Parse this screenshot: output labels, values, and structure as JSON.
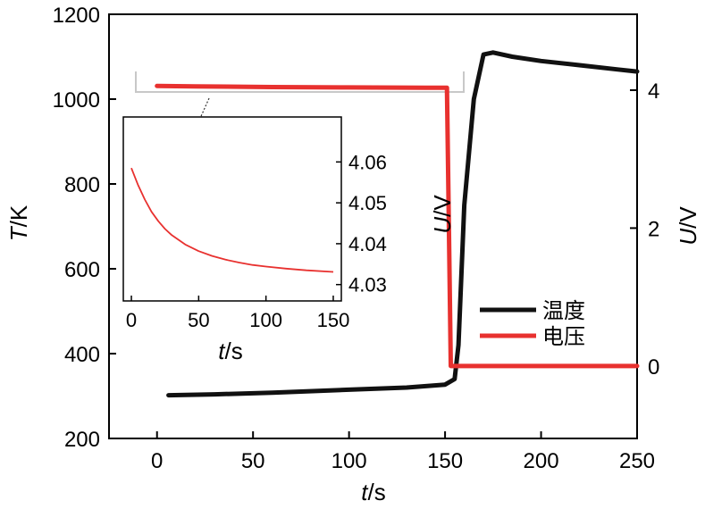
{
  "chart_data": [
    {
      "type": "line",
      "xlabel": {
        "italic": "t",
        "rest": "/s"
      },
      "ylabel_left": {
        "italic": "T",
        "rest": "/K"
      },
      "ylabel_right": {
        "italic": "U",
        "rest": "/V"
      },
      "xlim": [
        -25,
        250
      ],
      "ylim_left": [
        200,
        1200
      ],
      "ylim_right": [
        -1.05,
        5.1
      ],
      "x_ticks": [
        0,
        50,
        100,
        150,
        200,
        250
      ],
      "y_left_ticks": [
        200,
        400,
        600,
        800,
        1000,
        1200
      ],
      "y_right_ticks": [
        0,
        2,
        4
      ],
      "legend_position": "center-right",
      "series": [
        {
          "name": "温度",
          "axis": "left",
          "color": "#111111",
          "x": [
            6,
            30,
            60,
            100,
            130,
            150,
            155,
            157,
            160,
            165,
            170,
            175,
            185,
            200,
            220,
            240,
            250
          ],
          "y": [
            302,
            304,
            308,
            315,
            320,
            327,
            340,
            420,
            750,
            1000,
            1105,
            1110,
            1100,
            1090,
            1080,
            1070,
            1065
          ]
        },
        {
          "name": "电压",
          "axis": "right",
          "color": "#e8312f",
          "x": [
            0,
            20,
            60,
            100,
            140,
            151,
            152,
            153,
            160,
            200,
            250
          ],
          "y": [
            4.06,
            4.055,
            4.045,
            4.04,
            4.035,
            4.035,
            2.0,
            0,
            0,
            0,
            0
          ]
        }
      ]
    },
    {
      "type": "line",
      "role": "inset",
      "xlabel": {
        "italic": "t",
        "rest": "/s"
      },
      "ylabel": {
        "italic": "U",
        "rest": "/V"
      },
      "xlim": [
        -6,
        156
      ],
      "ylim": [
        4.026,
        4.071
      ],
      "x_ticks": [
        0,
        50,
        100,
        150
      ],
      "y_ticks": [
        4.03,
        4.04,
        4.05,
        4.06
      ],
      "series": [
        {
          "color": "#e8312f",
          "x": [
            0,
            5,
            10,
            15,
            20,
            25,
            30,
            40,
            50,
            60,
            70,
            80,
            90,
            100,
            115,
            130,
            150
          ],
          "y": [
            4.0585,
            4.0543,
            4.0508,
            4.0478,
            4.0455,
            4.0436,
            4.0421,
            4.0398,
            4.0382,
            4.037,
            4.0361,
            4.0354,
            4.0348,
            4.0344,
            4.0339,
            4.0335,
            4.0331
          ]
        }
      ]
    }
  ]
}
